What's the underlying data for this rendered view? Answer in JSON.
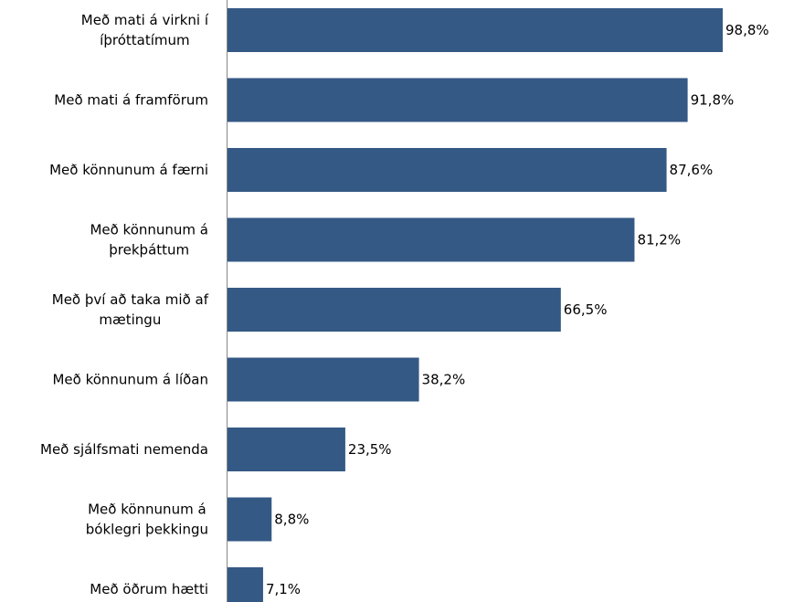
{
  "chart_data": {
    "type": "bar",
    "orientation": "horizontal",
    "categories": [
      "Með mati á virkni í íþróttatímum",
      "Með mati á framförum",
      "Með könnunum á færni",
      "Með könnunum á þrekþáttum",
      "Með því að taka mið af mætingu",
      "Með könnunum á líðan",
      "Með sjálfsmati nemenda",
      "Með könnunum á bóklegri þekkingu",
      "Með öðrum hætti"
    ],
    "category_lines": [
      [
        "Með mati á virkni í",
        "íþróttatímum"
      ],
      [
        "Með mati á framförum"
      ],
      [
        "Með könnunum á færni"
      ],
      [
        "Með könnunum á",
        "þrekþáttum"
      ],
      [
        "Með því að taka mið af",
        "mætingu"
      ],
      [
        "Með könnunum á líðan"
      ],
      [
        "Með sjálfsmati nemenda"
      ],
      [
        "Með könnunum á",
        "bóklegri þekkingu"
      ],
      [
        "Með öðrum hætti"
      ]
    ],
    "values": [
      98.8,
      91.8,
      87.6,
      81.2,
      66.5,
      38.2,
      23.5,
      8.8,
      7.1
    ],
    "value_labels": [
      "98,8%",
      "91,8%",
      "87,6%",
      "81,2%",
      "66,5%",
      "38,2%",
      "23,5%",
      "8,8%",
      "7,1%"
    ],
    "xlim": [
      0,
      100
    ],
    "unit": "%",
    "grid": false,
    "legend": "none",
    "bar_color": "#355985"
  }
}
